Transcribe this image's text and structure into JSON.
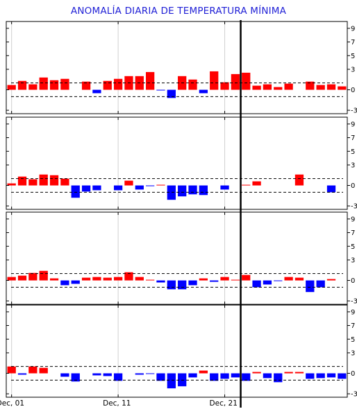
{
  "title": "ANOMALÍA DIARIA DE TEMPERATURA MÍNIMA",
  "colors": {
    "positive": "#ff0000",
    "negative": "#0000ff",
    "frame": "#000000",
    "grid": "#cfcfcf",
    "title": "#1f1fd6"
  },
  "chart_data": {
    "type": "bar",
    "title": "ANOMALÍA DIARIA DE TEMPERATURA MÍNIMA",
    "grid": true,
    "x_tick_labels": [
      "Dec, 01",
      "Dec, 11",
      "Dec, 21"
    ],
    "x_tick_days": [
      1,
      11,
      21
    ],
    "x_range_days": [
      0.5,
      32.5
    ],
    "marker_day": 22,
    "y_ticks": [
      -3,
      0,
      3,
      5,
      7,
      9
    ],
    "y_ticks_labeled": [
      "-3",
      "0",
      "3",
      "5",
      "7",
      "9"
    ],
    "ylim": [
      -3.5,
      10
    ],
    "threshold_lines": [
      1.0,
      -1.0
    ],
    "panels": [
      {
        "days": [
          1,
          2,
          3,
          4,
          5,
          6,
          7,
          8,
          9,
          10,
          11,
          12,
          13,
          14,
          15,
          16,
          17,
          18,
          19,
          20,
          21,
          22,
          23,
          24,
          25,
          26,
          27,
          28,
          29,
          30,
          31,
          32
        ],
        "values": [
          0.7,
          1.3,
          0.8,
          1.8,
          1.4,
          1.6,
          0,
          1.2,
          -0.5,
          1.3,
          1.6,
          2.0,
          2.0,
          2.6,
          -0.1,
          -1.2,
          2.0,
          1.5,
          -0.5,
          2.7,
          1.1,
          2.3,
          2.5,
          0.6,
          0.8,
          0.4,
          0.9,
          0,
          1.2,
          0.7,
          0.8,
          0.5
        ]
      },
      {
        "days": [
          1,
          2,
          3,
          4,
          5,
          6,
          7,
          8,
          9,
          10,
          11,
          12,
          13,
          14,
          15,
          16,
          17,
          18,
          19,
          20,
          21,
          22,
          23,
          24,
          25,
          26,
          27,
          28,
          29,
          30,
          31,
          32
        ],
        "values": [
          0.3,
          1.3,
          0.9,
          1.6,
          1.5,
          1.0,
          -1.8,
          -0.9,
          -0.7,
          0,
          -0.7,
          0.7,
          -0.6,
          -0.1,
          0.1,
          -2.1,
          -1.6,
          -1.3,
          -1.4,
          0,
          -0.6,
          0,
          0.1,
          0.6,
          0,
          0,
          0,
          1.6,
          0,
          0,
          -1.0,
          0
        ]
      },
      {
        "days": [
          1,
          2,
          3,
          4,
          5,
          6,
          7,
          8,
          9,
          10,
          11,
          12,
          13,
          14,
          15,
          16,
          17,
          18,
          19,
          20,
          21,
          22,
          23,
          24,
          25,
          26,
          27,
          28,
          29,
          30,
          31,
          32
        ],
        "values": [
          0.5,
          0.7,
          1.1,
          1.4,
          0.3,
          -0.7,
          -0.5,
          0.4,
          0.5,
          0.4,
          0.5,
          1.2,
          0.5,
          0.1,
          -0.3,
          -1.3,
          -1.3,
          -0.7,
          0.3,
          -0.2,
          0.5,
          0.1,
          0.8,
          -1.0,
          -0.6,
          -0.1,
          0.5,
          0.4,
          -1.7,
          -1.0,
          0.2,
          0
        ]
      },
      {
        "days": [
          1,
          2,
          3,
          4,
          5,
          6,
          7,
          8,
          9,
          10,
          11,
          12,
          13,
          14,
          15,
          16,
          17,
          18,
          19,
          20,
          21,
          22,
          23,
          24,
          25,
          26,
          27,
          28,
          29,
          30,
          31,
          32
        ],
        "values": [
          1.0,
          -0.2,
          1.0,
          0.8,
          0,
          -0.5,
          -1.2,
          0,
          -0.3,
          -0.4,
          -1.1,
          0,
          -0.2,
          -0.1,
          -1.1,
          -2.2,
          -1.9,
          -0.6,
          0.4,
          -1.1,
          -0.8,
          -0.6,
          -1.1,
          0.2,
          -0.7,
          -1.3,
          0.2,
          0.2,
          -0.8,
          -0.7,
          -0.6,
          -0.8
        ]
      }
    ]
  }
}
